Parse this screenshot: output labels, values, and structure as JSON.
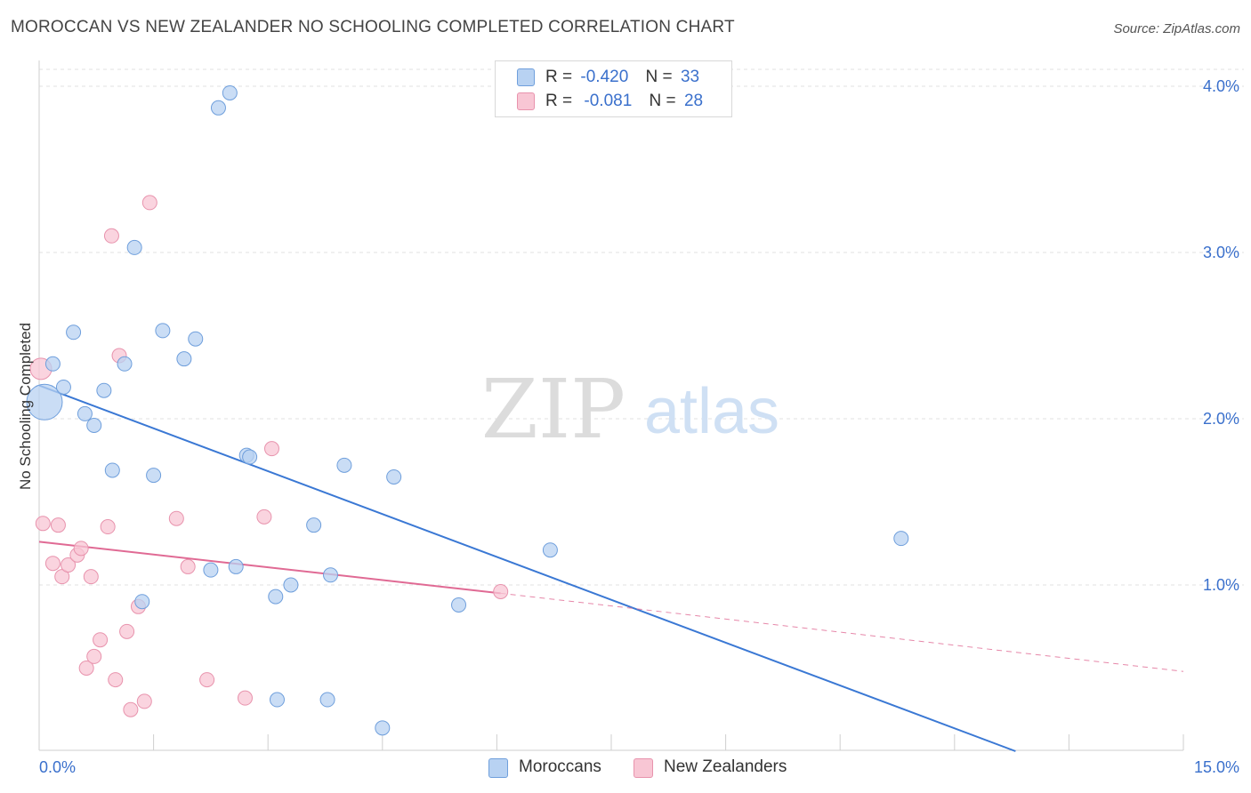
{
  "header": {
    "title": "MOROCCAN VS NEW ZEALANDER NO SCHOOLING COMPLETED CORRELATION CHART",
    "source": "Source: ZipAtlas.com"
  },
  "legend": {
    "rows": [
      {
        "r_label": "R =",
        "r_value": "-0.420",
        "n_label": "N =",
        "n_value": "33"
      },
      {
        "r_label": "R =",
        "r_value": "-0.081",
        "n_label": "N =",
        "n_value": "28"
      }
    ],
    "series": [
      "Moroccans",
      "New Zealanders"
    ]
  },
  "watermark": {
    "zip": "ZIP",
    "atlas": "atlas"
  },
  "colors": {
    "blue_fill": "#b8d2f2",
    "blue_stroke": "#6f9fdc",
    "blue_line": "#3a78d4",
    "pink_fill": "#f8c6d4",
    "pink_stroke": "#e893ad",
    "pink_line": "#e06a94",
    "axis_text": "#3a70cc",
    "grid": "#e2e2e2"
  },
  "chart_data": {
    "type": "scatter",
    "title": "MOROCCAN VS NEW ZEALANDER NO SCHOOLING COMPLETED CORRELATION CHART",
    "xlabel": "",
    "ylabel": "No Schooling Completed",
    "xlim": [
      0,
      15
    ],
    "ylim": [
      0,
      4.2
    ],
    "x_tick_labels": [
      "0.0%",
      "15.0%"
    ],
    "y_ticks": [
      1,
      2,
      3,
      4
    ],
    "y_tick_labels": [
      "1.0%",
      "2.0%",
      "3.0%",
      "4.0%"
    ],
    "series": [
      {
        "name": "Moroccans",
        "points": [
          [
            0.0,
            2.1
          ],
          [
            0.18,
            2.33
          ],
          [
            0.32,
            2.19
          ],
          [
            0.45,
            2.52
          ],
          [
            0.6,
            2.03
          ],
          [
            0.72,
            1.96
          ],
          [
            0.85,
            2.17
          ],
          [
            0.96,
            1.69
          ],
          [
            1.12,
            2.33
          ],
          [
            1.25,
            3.03
          ],
          [
            1.35,
            0.9
          ],
          [
            1.5,
            1.66
          ],
          [
            1.62,
            2.53
          ],
          [
            1.9,
            2.36
          ],
          [
            2.05,
            2.48
          ],
          [
            2.25,
            1.09
          ],
          [
            2.35,
            3.87
          ],
          [
            2.5,
            3.96
          ],
          [
            2.58,
            1.11
          ],
          [
            2.72,
            1.78
          ],
          [
            2.76,
            1.77
          ],
          [
            3.1,
            0.93
          ],
          [
            3.12,
            0.31
          ],
          [
            3.3,
            1.0
          ],
          [
            3.6,
            1.36
          ],
          [
            3.82,
            1.06
          ],
          [
            3.78,
            0.31
          ],
          [
            4.0,
            1.72
          ],
          [
            4.5,
            0.14
          ],
          [
            4.65,
            1.65
          ],
          [
            5.5,
            0.88
          ],
          [
            6.7,
            1.21
          ],
          [
            11.3,
            1.28
          ]
        ],
        "trend": {
          "x0": 0.0,
          "y0": 2.2,
          "x1": 12.8,
          "y1": 0.0
        }
      },
      {
        "name": "New Zealanders",
        "points": [
          [
            0.0,
            2.3
          ],
          [
            0.05,
            1.37
          ],
          [
            0.18,
            1.13
          ],
          [
            0.25,
            1.36
          ],
          [
            0.3,
            1.05
          ],
          [
            0.38,
            1.12
          ],
          [
            0.5,
            1.18
          ],
          [
            0.55,
            1.22
          ],
          [
            0.62,
            0.5
          ],
          [
            0.68,
            1.05
          ],
          [
            0.72,
            0.57
          ],
          [
            0.8,
            0.67
          ],
          [
            0.9,
            1.35
          ],
          [
            0.95,
            3.1
          ],
          [
            1.0,
            0.43
          ],
          [
            1.05,
            2.38
          ],
          [
            1.15,
            0.72
          ],
          [
            1.2,
            0.25
          ],
          [
            1.3,
            0.87
          ],
          [
            1.38,
            0.3
          ],
          [
            1.45,
            3.3
          ],
          [
            1.8,
            1.4
          ],
          [
            1.95,
            1.11
          ],
          [
            2.2,
            0.43
          ],
          [
            2.7,
            0.32
          ],
          [
            2.95,
            1.41
          ],
          [
            3.05,
            1.82
          ],
          [
            6.05,
            0.96
          ]
        ],
        "trend": {
          "x0": 0.0,
          "y0": 1.26,
          "x1": 6.05,
          "y1": 0.95,
          "x_dash_end": 15.0,
          "y_dash_end": 0.48
        }
      }
    ]
  }
}
